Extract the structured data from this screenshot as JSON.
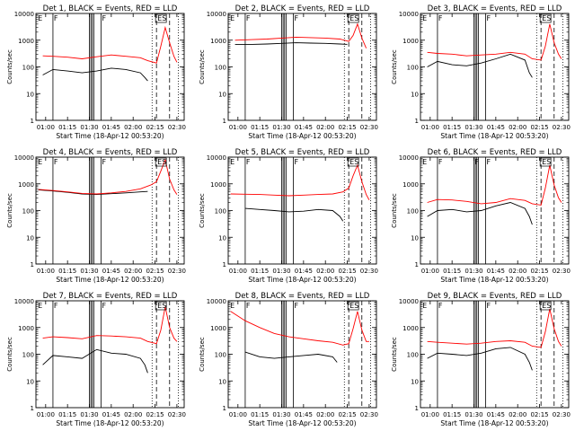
{
  "colors": {
    "events": "#000000",
    "lld": "#ff0000",
    "axis": "#000000"
  },
  "common": {
    "ylabel": "Counts/sec",
    "xlabel": "Start Time (18-Apr-12 00:53:20)",
    "xticks": [
      "01:00",
      "01:15",
      "01:30",
      "01:45",
      "02:00",
      "02:15",
      "02:30"
    ],
    "yticks": [
      "1",
      "10",
      "100",
      "1000",
      "10000"
    ]
  },
  "chart_data": [
    {
      "type": "line",
      "title": "Det 1, BLACK = Events, RED = LLD",
      "xlim": [
        "00:53:20",
        "02:35"
      ],
      "ylim": [
        1,
        10000
      ],
      "yscale": "log",
      "series": [
        {
          "name": "Events",
          "color": "#000000",
          "x": [
            "00:58",
            "01:05",
            "01:15",
            "01:25",
            "01:35",
            "01:45",
            "01:55",
            "02:05",
            "02:08",
            "02:10"
          ],
          "y": [
            50,
            80,
            70,
            60,
            70,
            90,
            80,
            60,
            40,
            30
          ]
        },
        {
          "name": "LLD",
          "color": "#ff0000",
          "x": [
            "00:58",
            "01:05",
            "01:15",
            "01:25",
            "01:35",
            "01:45",
            "01:55",
            "02:05",
            "02:10",
            "02:16",
            "02:19",
            "02:22",
            "02:25",
            "02:28",
            "02:30"
          ],
          "y": [
            260,
            250,
            230,
            200,
            240,
            280,
            250,
            220,
            170,
            140,
            600,
            3000,
            800,
            250,
            150
          ]
        }
      ],
      "vlines_solid": [
        "01:05",
        "01:30",
        "01:31",
        "01:32",
        "01:33",
        "01:38"
      ],
      "vlines_dashed": [
        "02:16",
        "02:25"
      ],
      "vlines_dotted": [
        "02:13",
        "02:31"
      ],
      "annotations": [
        {
          "text": "E",
          "x": "00:54"
        },
        {
          "text": "F",
          "x": "01:05"
        },
        {
          "text": "F",
          "x": "01:38"
        },
        {
          "text": "ES",
          "x": "02:16"
        }
      ]
    },
    {
      "type": "line",
      "title": "Det 2, BLACK = Events, RED = LLD",
      "xlim": [
        "00:53:20",
        "02:35"
      ],
      "ylim": [
        1,
        10000
      ],
      "yscale": "log",
      "series": [
        {
          "name": "Events",
          "color": "#000000",
          "x": [
            "00:58",
            "01:10",
            "01:20",
            "01:30",
            "01:40",
            "01:50",
            "02:00",
            "02:10",
            "02:15"
          ],
          "y": [
            700,
            700,
            720,
            760,
            800,
            780,
            760,
            720,
            700
          ]
        },
        {
          "name": "LLD",
          "color": "#ff0000",
          "x": [
            "00:58",
            "01:10",
            "01:20",
            "01:30",
            "01:40",
            "01:50",
            "02:00",
            "02:10",
            "02:16",
            "02:19",
            "02:22",
            "02:25",
            "02:28"
          ],
          "y": [
            1000,
            1050,
            1100,
            1200,
            1300,
            1250,
            1200,
            1100,
            900,
            1500,
            4000,
            1200,
            500
          ]
        }
      ],
      "vlines_solid": [
        "01:05",
        "01:30",
        "01:31",
        "01:32",
        "01:33",
        "01:38"
      ],
      "vlines_dashed": [
        "02:16",
        "02:25"
      ],
      "vlines_dotted": [
        "02:13",
        "02:31"
      ],
      "annotations": [
        {
          "text": "E",
          "x": "00:54"
        },
        {
          "text": "F",
          "x": "01:05"
        },
        {
          "text": "F",
          "x": "01:38"
        },
        {
          "text": "ES",
          "x": "02:16"
        }
      ]
    },
    {
      "type": "line",
      "title": "Det 3, BLACK = Events, RED = LLD",
      "xlim": [
        "00:53:20",
        "02:35"
      ],
      "ylim": [
        1,
        10000
      ],
      "yscale": "log",
      "series": [
        {
          "name": "Events",
          "color": "#000000",
          "x": [
            "00:58",
            "01:05",
            "01:15",
            "01:25",
            "01:35",
            "01:45",
            "01:55",
            "02:05",
            "02:08",
            "02:10"
          ],
          "y": [
            100,
            160,
            120,
            110,
            140,
            200,
            300,
            180,
            60,
            40
          ]
        },
        {
          "name": "LLD",
          "color": "#ff0000",
          "x": [
            "00:58",
            "01:05",
            "01:15",
            "01:25",
            "01:35",
            "01:45",
            "01:55",
            "02:05",
            "02:10",
            "02:16",
            "02:19",
            "02:22",
            "02:25",
            "02:28",
            "02:30"
          ],
          "y": [
            350,
            320,
            300,
            260,
            280,
            300,
            350,
            300,
            200,
            180,
            600,
            4000,
            800,
            300,
            200
          ]
        }
      ],
      "vlines_solid": [
        "01:05",
        "01:30",
        "01:31",
        "01:32",
        "01:33",
        "01:38"
      ],
      "vlines_dashed": [
        "02:16",
        "02:25"
      ],
      "vlines_dotted": [
        "02:13",
        "02:31"
      ],
      "annotations": [
        {
          "text": "E",
          "x": "00:54"
        },
        {
          "text": "F",
          "x": "01:05"
        },
        {
          "text": "F",
          "x": "01:38"
        },
        {
          "text": "ES",
          "x": "02:16"
        }
      ]
    },
    {
      "type": "line",
      "title": "Det 4, BLACK = Events, RED = LLD",
      "xlim": [
        "00:53:20",
        "02:35"
      ],
      "ylim": [
        1,
        10000
      ],
      "yscale": "log",
      "series": [
        {
          "name": "Events",
          "color": "#000000",
          "x": [
            "00:55",
            "01:05",
            "01:15",
            "01:25",
            "01:35",
            "01:45",
            "01:55",
            "02:05",
            "02:10"
          ],
          "y": [
            600,
            540,
            480,
            420,
            400,
            430,
            460,
            500,
            520
          ]
        },
        {
          "name": "LLD",
          "color": "#ff0000",
          "x": [
            "00:55",
            "01:05",
            "01:15",
            "01:25",
            "01:35",
            "01:45",
            "01:55",
            "02:05",
            "02:12",
            "02:16",
            "02:19",
            "02:22",
            "02:25",
            "02:28",
            "02:30"
          ],
          "y": [
            620,
            560,
            500,
            440,
            420,
            460,
            520,
            650,
            900,
            1200,
            3000,
            8000,
            1500,
            600,
            400
          ]
        }
      ],
      "vlines_solid": [
        "01:05",
        "01:30",
        "01:31",
        "01:32",
        "01:33",
        "01:38"
      ],
      "vlines_dashed": [
        "02:16",
        "02:25"
      ],
      "vlines_dotted": [
        "02:13",
        "02:31"
      ],
      "annotations": [
        {
          "text": "E",
          "x": "00:54"
        },
        {
          "text": "F",
          "x": "01:05"
        },
        {
          "text": "F",
          "x": "01:38"
        },
        {
          "text": "ES",
          "x": "02:16"
        }
      ]
    },
    {
      "type": "line",
      "title": "Det 5, BLACK = Events, RED = LLD",
      "xlim": [
        "00:53:20",
        "02:35"
      ],
      "ylim": [
        1,
        10000
      ],
      "yscale": "log",
      "series": [
        {
          "name": "Events",
          "color": "#000000",
          "x": [
            "01:05",
            "01:15",
            "01:25",
            "01:35",
            "01:45",
            "01:55",
            "02:05",
            "02:10",
            "02:12"
          ],
          "y": [
            120,
            110,
            100,
            90,
            95,
            110,
            100,
            60,
            40
          ]
        },
        {
          "name": "LLD",
          "color": "#ff0000",
          "x": [
            "00:55",
            "01:05",
            "01:15",
            "01:25",
            "01:35",
            "01:45",
            "01:55",
            "02:05",
            "02:12",
            "02:16",
            "02:19",
            "02:22",
            "02:25",
            "02:28",
            "02:30"
          ],
          "y": [
            420,
            410,
            400,
            380,
            360,
            380,
            400,
            420,
            500,
            700,
            2000,
            5000,
            1200,
            400,
            250
          ]
        }
      ],
      "vlines_solid": [
        "01:05",
        "01:30",
        "01:31",
        "01:32",
        "01:33",
        "01:38"
      ],
      "vlines_dashed": [
        "02:16",
        "02:25"
      ],
      "vlines_dotted": [
        "02:13",
        "02:31"
      ],
      "annotations": [
        {
          "text": "E",
          "x": "00:54"
        },
        {
          "text": "F",
          "x": "01:05"
        },
        {
          "text": "F",
          "x": "01:38"
        },
        {
          "text": "ES",
          "x": "02:16"
        }
      ]
    },
    {
      "type": "line",
      "title": "Det 6, BLACK = Events, RED = LLD",
      "xlim": [
        "00:53:20",
        "02:35"
      ],
      "ylim": [
        1,
        10000
      ],
      "yscale": "log",
      "series": [
        {
          "name": "Events",
          "color": "#000000",
          "x": [
            "00:58",
            "01:05",
            "01:15",
            "01:25",
            "01:35",
            "01:45",
            "01:55",
            "02:05",
            "02:08",
            "02:10"
          ],
          "y": [
            60,
            100,
            110,
            90,
            100,
            150,
            200,
            120,
            60,
            30
          ]
        },
        {
          "name": "LLD",
          "color": "#ff0000",
          "x": [
            "00:58",
            "01:05",
            "01:15",
            "01:25",
            "01:35",
            "01:45",
            "01:55",
            "02:05",
            "02:10",
            "02:16",
            "02:19",
            "02:22",
            "02:25",
            "02:28",
            "02:30"
          ],
          "y": [
            200,
            260,
            250,
            220,
            180,
            200,
            280,
            240,
            180,
            160,
            700,
            5000,
            900,
            300,
            200
          ]
        }
      ],
      "vlines_solid": [
        "01:05",
        "01:30",
        "01:31",
        "01:32",
        "01:33",
        "01:38"
      ],
      "vlines_dashed": [
        "02:16",
        "02:25"
      ],
      "vlines_dotted": [
        "02:13",
        "02:31"
      ],
      "annotations": [
        {
          "text": "E",
          "x": "00:54"
        },
        {
          "text": "F",
          "x": "01:05"
        },
        {
          "text": "F",
          "x": "01:30"
        },
        {
          "text": "F",
          "x": "01:38"
        },
        {
          "text": "ES",
          "x": "02:16"
        }
      ]
    },
    {
      "type": "line",
      "title": "Det 7, BLACK = Events, RED = LLD",
      "xlim": [
        "00:53:20",
        "02:35"
      ],
      "ylim": [
        1,
        10000
      ],
      "yscale": "log",
      "series": [
        {
          "name": "Events",
          "color": "#000000",
          "x": [
            "00:58",
            "01:05",
            "01:15",
            "01:25",
            "01:35",
            "01:45",
            "01:55",
            "02:05",
            "02:08",
            "02:10"
          ],
          "y": [
            40,
            90,
            80,
            70,
            150,
            110,
            100,
            70,
            40,
            20
          ]
        },
        {
          "name": "LLD",
          "color": "#ff0000",
          "x": [
            "00:58",
            "01:05",
            "01:15",
            "01:25",
            "01:35",
            "01:45",
            "01:55",
            "02:05",
            "02:10",
            "02:16",
            "02:19",
            "02:22",
            "02:25",
            "02:28",
            "02:30"
          ],
          "y": [
            400,
            450,
            420,
            380,
            500,
            480,
            450,
            400,
            300,
            250,
            800,
            6000,
            1000,
            400,
            300
          ]
        }
      ],
      "vlines_solid": [
        "01:05",
        "01:30",
        "01:31",
        "01:32",
        "01:33",
        "01:38"
      ],
      "vlines_dashed": [
        "02:16",
        "02:25"
      ],
      "vlines_dotted": [
        "02:13",
        "02:31"
      ],
      "annotations": [
        {
          "text": "E",
          "x": "00:54"
        },
        {
          "text": "F",
          "x": "01:05"
        },
        {
          "text": "F",
          "x": "01:38"
        },
        {
          "text": "ES",
          "x": "02:16"
        }
      ]
    },
    {
      "type": "line",
      "title": "Det 8, BLACK = Events, RED = LLD",
      "xlim": [
        "00:53:20",
        "02:35"
      ],
      "ylim": [
        1,
        10000
      ],
      "yscale": "log",
      "series": [
        {
          "name": "Events",
          "color": "#000000",
          "x": [
            "01:05",
            "01:15",
            "01:25",
            "01:35",
            "01:45",
            "01:55",
            "02:05",
            "02:08"
          ],
          "y": [
            120,
            80,
            70,
            80,
            90,
            100,
            80,
            50
          ]
        },
        {
          "name": "LLD",
          "color": "#ff0000",
          "x": [
            "00:55",
            "01:05",
            "01:15",
            "01:25",
            "01:35",
            "01:45",
            "01:55",
            "02:05",
            "02:12",
            "02:16",
            "02:19",
            "02:22",
            "02:25",
            "02:28",
            "02:30"
          ],
          "y": [
            4000,
            1800,
            1000,
            600,
            450,
            380,
            320,
            280,
            220,
            250,
            900,
            4000,
            800,
            300,
            300
          ]
        }
      ],
      "vlines_solid": [
        "01:05",
        "01:30",
        "01:31",
        "01:32",
        "01:33",
        "01:38"
      ],
      "vlines_dashed": [
        "02:16",
        "02:25"
      ],
      "vlines_dotted": [
        "02:13",
        "02:31"
      ],
      "annotations": [
        {
          "text": "E",
          "x": "00:54"
        },
        {
          "text": "F",
          "x": "01:05"
        },
        {
          "text": "F",
          "x": "01:38"
        },
        {
          "text": "ES",
          "x": "02:16"
        }
      ]
    },
    {
      "type": "line",
      "title": "Det 9, BLACK = Events, RED = LLD",
      "xlim": [
        "00:53:20",
        "02:35"
      ],
      "ylim": [
        1,
        10000
      ],
      "yscale": "log",
      "series": [
        {
          "name": "Events",
          "color": "#000000",
          "x": [
            "00:58",
            "01:05",
            "01:15",
            "01:25",
            "01:35",
            "01:45",
            "01:55",
            "02:05",
            "02:08",
            "02:10"
          ],
          "y": [
            70,
            110,
            100,
            90,
            110,
            160,
            180,
            100,
            50,
            25
          ]
        },
        {
          "name": "LLD",
          "color": "#ff0000",
          "x": [
            "00:58",
            "01:05",
            "01:15",
            "01:25",
            "01:35",
            "01:45",
            "01:55",
            "02:05",
            "02:10",
            "02:16",
            "02:19",
            "02:22",
            "02:25",
            "02:28",
            "02:30"
          ],
          "y": [
            300,
            280,
            260,
            240,
            260,
            300,
            320,
            280,
            200,
            180,
            700,
            5000,
            900,
            300,
            200
          ]
        }
      ],
      "vlines_solid": [
        "01:05",
        "01:30",
        "01:31",
        "01:32",
        "01:33",
        "01:38"
      ],
      "vlines_dashed": [
        "02:16",
        "02:25"
      ],
      "vlines_dotted": [
        "02:13",
        "02:31"
      ],
      "annotations": [
        {
          "text": "E",
          "x": "00:54"
        },
        {
          "text": "F",
          "x": "01:05"
        },
        {
          "text": "F",
          "x": "01:38"
        },
        {
          "text": "ES",
          "x": "02:16"
        }
      ]
    }
  ]
}
